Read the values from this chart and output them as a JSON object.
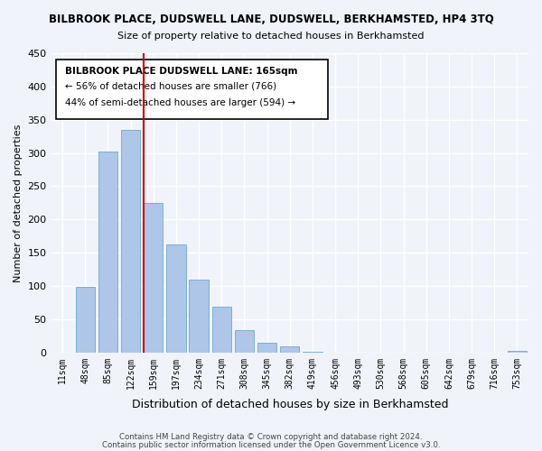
{
  "title": "BILBROOK PLACE, DUDSWELL LANE, DUDSWELL, BERKHAMSTED, HP4 3TQ",
  "subtitle": "Size of property relative to detached houses in Berkhamsted",
  "xlabel": "Distribution of detached houses by size in Berkhamsted",
  "ylabel": "Number of detached properties",
  "bar_labels": [
    "11sqm",
    "48sqm",
    "85sqm",
    "122sqm",
    "159sqm",
    "197sqm",
    "234sqm",
    "271sqm",
    "308sqm",
    "345sqm",
    "382sqm",
    "419sqm",
    "456sqm",
    "493sqm",
    "530sqm",
    "568sqm",
    "605sqm",
    "642sqm",
    "679sqm",
    "716sqm",
    "753sqm"
  ],
  "bar_values": [
    0,
    99,
    302,
    335,
    225,
    163,
    109,
    69,
    34,
    14,
    9,
    1,
    0,
    0,
    0,
    0,
    0,
    0,
    0,
    0,
    2
  ],
  "bar_color": "#aec6e8",
  "bar_edge_color": "#7aaed6",
  "vline_pos": 3.575,
  "vline_color": "#cc0000",
  "annotation_title": "BILBROOK PLACE DUDSWELL LANE: 165sqm",
  "annotation_line1": "← 56% of detached houses are smaller (766)",
  "annotation_line2": "44% of semi-detached houses are larger (594) →",
  "ylim": [
    0,
    450
  ],
  "yticks": [
    0,
    50,
    100,
    150,
    200,
    250,
    300,
    350,
    400,
    450
  ],
  "footer1": "Contains HM Land Registry data © Crown copyright and database right 2024.",
  "footer2": "Contains public sector information licensed under the Open Government Licence v3.0.",
  "bg_color": "#f0f4fa"
}
